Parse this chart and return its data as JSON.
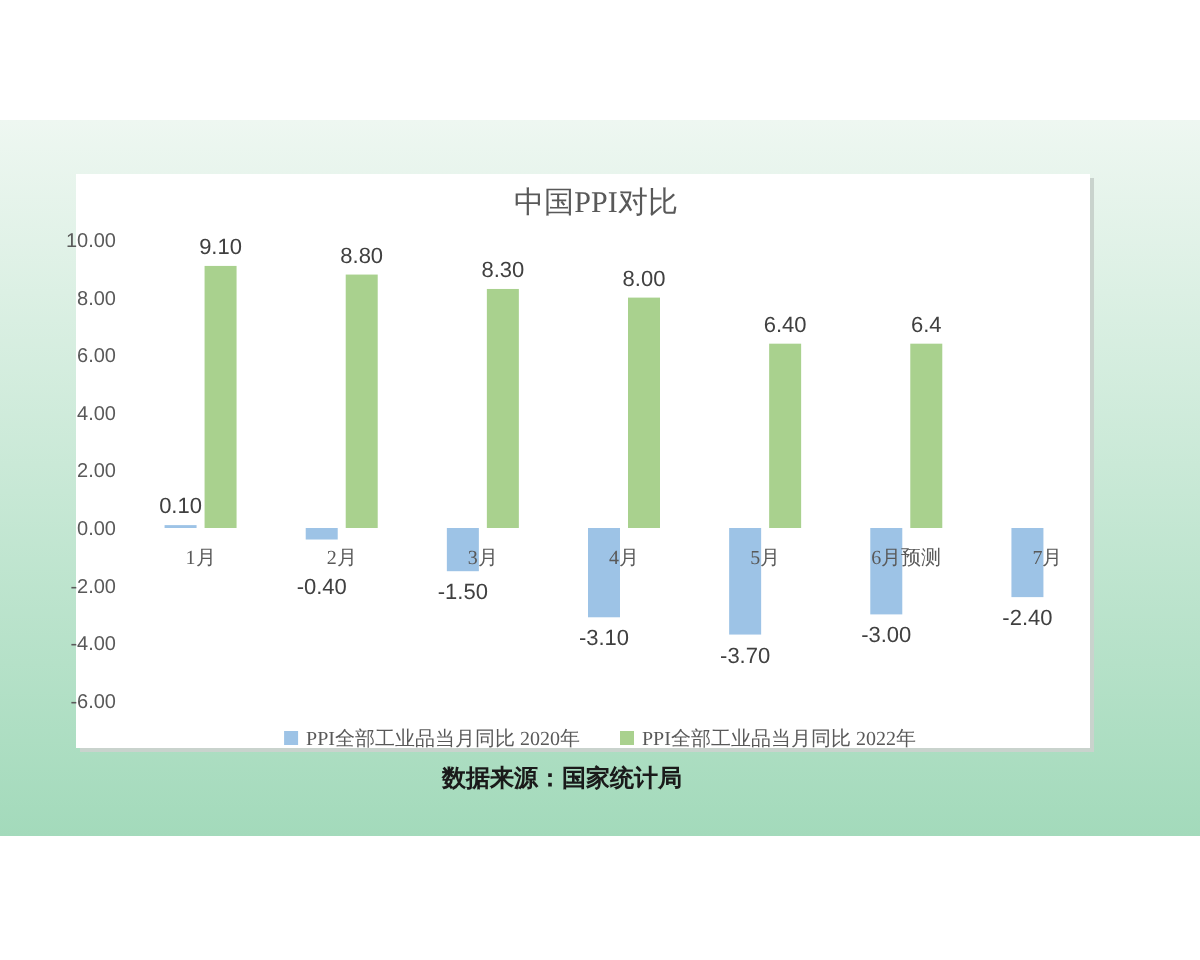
{
  "chart_data": {
    "type": "bar",
    "title": "中国PPI对比",
    "categories": [
      "1月",
      "2月",
      "3月",
      "4月",
      "5月",
      "6月预测",
      "7月"
    ],
    "series": [
      {
        "name": "PPI全部工业品当月同比 2020年",
        "color": "#9dc3e6",
        "values": [
          0.1,
          -0.4,
          -1.5,
          -3.1,
          -3.7,
          -3.0,
          -2.4
        ],
        "value_labels": [
          "0.10",
          "-0.40",
          "-1.50",
          "-3.10",
          "-3.70",
          "-3.00",
          "-2.40"
        ]
      },
      {
        "name": "PPI全部工业品当月同比 2022年",
        "color": "#a9d18e",
        "values": [
          9.1,
          8.8,
          8.3,
          8.0,
          6.4,
          6.4,
          null
        ],
        "value_labels": [
          "9.10",
          "8.80",
          "8.30",
          "8.00",
          "6.40",
          "6.4",
          null
        ]
      }
    ],
    "ylim": [
      -6,
      10
    ],
    "yticks": [
      {
        "value": -6,
        "label": "-6.00"
      },
      {
        "value": -4,
        "label": "-4.00"
      },
      {
        "value": -2,
        "label": "-2.00"
      },
      {
        "value": 0,
        "label": "0.00"
      },
      {
        "value": 2,
        "label": "2.00"
      },
      {
        "value": 4,
        "label": "4.00"
      },
      {
        "value": 6,
        "label": "6.00"
      },
      {
        "value": 8,
        "label": "8.00"
      },
      {
        "value": 10,
        "label": "10.00"
      }
    ],
    "legend": "bottom",
    "annotations": [
      "数据来源：国家统计局"
    ]
  }
}
